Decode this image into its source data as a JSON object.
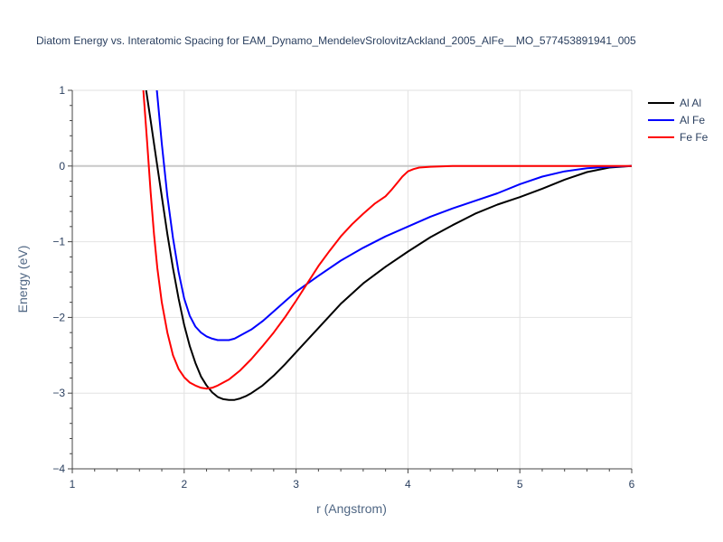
{
  "chart_data": {
    "type": "line",
    "title": "Diatom Energy vs. Interatomic Spacing for EAM_Dynamo_MendelevSrolovitzAckland_2005_AlFe__MO_577453891941_005",
    "xlabel": "r (Angstrom)",
    "ylabel": "Energy (eV)",
    "xlim": [
      1,
      6
    ],
    "ylim": [
      -4,
      1
    ],
    "xticks": [
      1,
      2,
      3,
      4,
      5,
      6
    ],
    "yticks": [
      -4,
      -3,
      -2,
      -1,
      0,
      1
    ],
    "grid": true,
    "legend_position": "top-right",
    "series": [
      {
        "name": "Al Al",
        "color": "#000000",
        "x": [
          1.65,
          1.7,
          1.75,
          1.8,
          1.85,
          1.9,
          1.95,
          2.0,
          2.05,
          2.1,
          2.15,
          2.2,
          2.25,
          2.3,
          2.35,
          2.4,
          2.45,
          2.5,
          2.55,
          2.6,
          2.7,
          2.8,
          2.9,
          3.0,
          3.2,
          3.4,
          3.6,
          3.8,
          4.0,
          4.2,
          4.4,
          4.6,
          4.8,
          5.0,
          5.2,
          5.4,
          5.6,
          5.8,
          6.0
        ],
        "y": [
          1.1,
          0.6,
          0.1,
          -0.4,
          -0.9,
          -1.35,
          -1.75,
          -2.1,
          -2.38,
          -2.6,
          -2.78,
          -2.9,
          -2.99,
          -3.05,
          -3.08,
          -3.09,
          -3.09,
          -3.07,
          -3.04,
          -3.0,
          -2.9,
          -2.77,
          -2.62,
          -2.46,
          -2.14,
          -1.82,
          -1.55,
          -1.33,
          -1.13,
          -0.94,
          -0.78,
          -0.63,
          -0.51,
          -0.41,
          -0.3,
          -0.18,
          -0.08,
          -0.02,
          0.0
        ]
      },
      {
        "name": "Al Fe",
        "color": "#0000ff",
        "x": [
          1.75,
          1.8,
          1.85,
          1.9,
          1.95,
          2.0,
          2.05,
          2.1,
          2.15,
          2.2,
          2.25,
          2.3,
          2.35,
          2.4,
          2.45,
          2.5,
          2.6,
          2.7,
          2.8,
          2.9,
          3.0,
          3.2,
          3.4,
          3.6,
          3.8,
          4.0,
          4.2,
          4.4,
          4.6,
          4.8,
          5.0,
          5.2,
          5.4,
          5.6,
          5.8,
          6.0
        ],
        "y": [
          1.1,
          0.3,
          -0.4,
          -0.95,
          -1.4,
          -1.75,
          -1.98,
          -2.12,
          -2.2,
          -2.25,
          -2.28,
          -2.3,
          -2.3,
          -2.3,
          -2.28,
          -2.24,
          -2.16,
          -2.05,
          -1.92,
          -1.79,
          -1.66,
          -1.45,
          -1.25,
          -1.08,
          -0.93,
          -0.8,
          -0.67,
          -0.56,
          -0.46,
          -0.36,
          -0.24,
          -0.14,
          -0.07,
          -0.03,
          -0.01,
          0.0
        ]
      },
      {
        "name": "Fe Fe",
        "color": "#ff0000",
        "x": [
          1.63,
          1.67,
          1.7,
          1.73,
          1.76,
          1.8,
          1.85,
          1.9,
          1.95,
          2.0,
          2.05,
          2.1,
          2.15,
          2.2,
          2.25,
          2.3,
          2.4,
          2.5,
          2.6,
          2.7,
          2.8,
          2.9,
          3.0,
          3.1,
          3.2,
          3.3,
          3.4,
          3.5,
          3.6,
          3.7,
          3.8,
          3.85,
          3.9,
          3.95,
          4.0,
          4.05,
          4.1,
          4.2,
          4.4,
          4.6,
          5.0,
          6.0
        ],
        "y": [
          1.1,
          0.3,
          -0.35,
          -0.9,
          -1.35,
          -1.8,
          -2.2,
          -2.5,
          -2.68,
          -2.79,
          -2.86,
          -2.9,
          -2.93,
          -2.94,
          -2.93,
          -2.9,
          -2.82,
          -2.7,
          -2.55,
          -2.38,
          -2.2,
          -2.0,
          -1.78,
          -1.55,
          -1.32,
          -1.12,
          -0.93,
          -0.77,
          -0.63,
          -0.5,
          -0.4,
          -0.32,
          -0.23,
          -0.14,
          -0.07,
          -0.04,
          -0.02,
          -0.01,
          0.0,
          0.0,
          0.0,
          0.0
        ]
      }
    ]
  }
}
